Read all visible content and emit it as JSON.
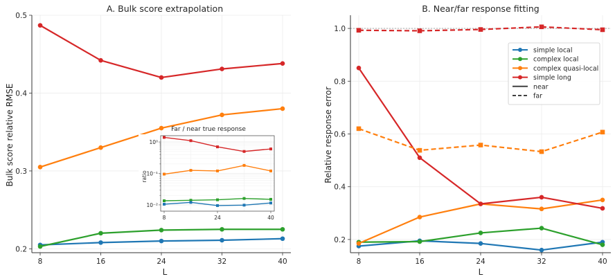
{
  "chart_data": [
    {
      "type": "line",
      "title": "A. Bulk score extrapolation",
      "xlabel": "L",
      "ylabel": "Bulk score relative RMSE",
      "x": [
        8,
        16,
        24,
        32,
        40
      ],
      "xticks": [
        "8",
        "16",
        "24",
        "32",
        "40"
      ],
      "ylim": [
        0.195,
        0.5
      ],
      "yticks": [
        "0.2",
        "0.3",
        "0.4",
        "0.5"
      ],
      "grid": true,
      "series": [
        {
          "values": [
            0.205,
            0.208,
            0.21,
            0.211,
            0.213
          ],
          "color": "#1f77b4",
          "marker": "circle"
        },
        {
          "values": [
            0.203,
            0.22,
            0.224,
            0.225,
            0.225
          ],
          "color": "#2ca02c",
          "marker": "circle"
        },
        {
          "values": [
            0.305,
            0.33,
            0.355,
            0.372,
            0.38
          ],
          "color": "#ff7f0e",
          "marker": "circle"
        },
        {
          "values": [
            0.487,
            0.442,
            0.42,
            0.431,
            0.438
          ],
          "color": "#d62728",
          "marker": "circle"
        }
      ],
      "inset": {
        "type": "line",
        "title": "Far / near true response",
        "ylabel": "ratio",
        "yscale": "log",
        "x": [
          8,
          16,
          24,
          32,
          40
        ],
        "xticks": [
          "8",
          "24",
          "40"
        ],
        "yticks": [
          "10⁰",
          "10⁻¹",
          "10⁻²"
        ],
        "ylim_log10": [
          -2.2,
          0.2
        ],
        "series": [
          {
            "values": [
              1.4,
              1.1,
              0.7,
              0.5,
              0.6
            ],
            "color": "#d62728",
            "marker": "square"
          },
          {
            "values": [
              0.095,
              0.125,
              0.12,
              0.18,
              0.12
            ],
            "color": "#ff7f0e",
            "marker": "square"
          },
          {
            "values": [
              0.0135,
              0.014,
              0.0145,
              0.016,
              0.015
            ],
            "color": "#2ca02c",
            "marker": "square"
          },
          {
            "values": [
              0.0105,
              0.012,
              0.0095,
              0.0098,
              0.0115
            ],
            "color": "#1f77b4",
            "marker": "square"
          }
        ]
      }
    },
    {
      "type": "line",
      "title": "B. Near/far response fitting",
      "xlabel": "L",
      "ylabel": "Relative response error",
      "x": [
        8,
        16,
        24,
        32,
        40
      ],
      "xticks": [
        "8",
        "16",
        "24",
        "32",
        "40"
      ],
      "ylim": [
        0.15,
        1.05
      ],
      "yticks": [
        "0.2",
        "0.4",
        "0.6",
        "0.8",
        "1.0"
      ],
      "reference_line": 1.0,
      "grid": true,
      "legend_position": "right, below top",
      "legend": [
        {
          "label": "simple local",
          "color": "#1f77b4",
          "style": "marker-line"
        },
        {
          "label": "complex local",
          "color": "#2ca02c",
          "style": "marker-line"
        },
        {
          "label": "complex quasi-local",
          "color": "#ff7f0e",
          "style": "marker-line"
        },
        {
          "label": "simple long",
          "color": "#d62728",
          "style": "marker-line"
        },
        {
          "label": "near",
          "color": "#404040",
          "style": "solid"
        },
        {
          "label": "far",
          "color": "#404040",
          "style": "dashed"
        }
      ],
      "series": [
        {
          "name": "simple local",
          "linestyle": "solid",
          "marker": "circle",
          "color": "#1f77b4",
          "values": [
            0.175,
            0.195,
            0.185,
            0.16,
            0.19
          ]
        },
        {
          "name": "complex local",
          "linestyle": "solid",
          "marker": "circle",
          "color": "#2ca02c",
          "values": [
            0.19,
            0.192,
            0.225,
            0.243,
            0.18
          ]
        },
        {
          "name": "complex quasi-local",
          "linestyle": "solid",
          "marker": "circle",
          "color": "#ff7f0e",
          "values": [
            0.185,
            0.285,
            0.335,
            0.316,
            0.35
          ]
        },
        {
          "name": "simple long",
          "linestyle": "solid",
          "marker": "circle",
          "color": "#d62728",
          "values": [
            0.85,
            0.51,
            0.335,
            0.36,
            0.318
          ]
        },
        {
          "name": "complex quasi-local",
          "linestyle": "dashed",
          "marker": "square",
          "color": "#ff7f0e",
          "values": [
            0.62,
            0.538,
            0.558,
            0.533,
            0.607
          ]
        },
        {
          "name": "simple long",
          "linestyle": "dashed",
          "marker": "square",
          "color": "#d62728",
          "values": [
            0.993,
            0.991,
            0.996,
            1.006,
            0.995
          ]
        }
      ]
    }
  ]
}
